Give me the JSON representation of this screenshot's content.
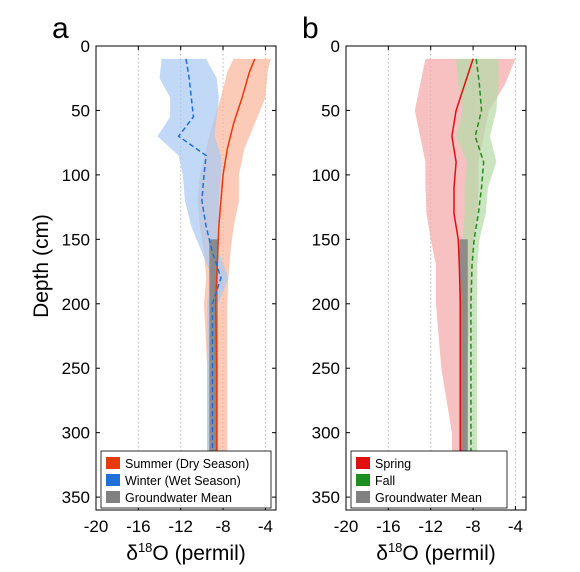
{
  "shared_ylabel": "Depth (cm)",
  "chart_data": [
    {
      "type": "line",
      "panel_label": "a",
      "xlabel_main": "δ",
      "xlabel_sup": "18",
      "xlabel_rest": "O (permil)",
      "xlim": [
        -20,
        -3
      ],
      "ylim": [
        0,
        360
      ],
      "y_reversed": true,
      "xticks": [
        -20,
        -16,
        -12,
        -8,
        -4
      ],
      "yticks": [
        0,
        50,
        100,
        150,
        200,
        250,
        300,
        350
      ],
      "grid": "vertical dotted",
      "legend_placement": "bottom",
      "series": [
        {
          "name": "Summer (Dry Season)",
          "color": "#e8380d",
          "fill": "#f9b79c",
          "dash": "solid",
          "depth": [
            10,
            20,
            40,
            60,
            80,
            100,
            120,
            140,
            160,
            180,
            200,
            250,
            300,
            315
          ],
          "mean": [
            -5.0,
            -5.5,
            -6.2,
            -7.0,
            -7.6,
            -8.0,
            -8.2,
            -8.4,
            -8.5,
            -8.6,
            -8.7,
            -8.6,
            -8.6,
            -8.6
          ],
          "low": [
            -7.0,
            -7.6,
            -8.2,
            -9.0,
            -9.6,
            -10.2,
            -10.4,
            -10.2,
            -9.8,
            -9.6,
            -9.8,
            -9.5,
            -9.5,
            -9.5
          ],
          "high": [
            -3.5,
            -3.8,
            -4.0,
            -5.0,
            -6.0,
            -6.5,
            -6.5,
            -7.0,
            -7.3,
            -7.5,
            -7.6,
            -7.6,
            -7.6,
            -7.6
          ]
        },
        {
          "name": "Winter (Wet Season)",
          "color": "#1f6fd6",
          "fill": "#a9c9f2",
          "dash": "dashed",
          "depth": [
            10,
            25,
            40,
            55,
            70,
            85,
            100,
            120,
            140,
            160,
            180,
            200,
            250,
            300,
            315
          ],
          "mean": [
            -11.5,
            -11.2,
            -11.0,
            -10.8,
            -12.2,
            -9.6,
            -9.8,
            -10.0,
            -9.6,
            -9.0,
            -8.2,
            -9.0,
            -9.0,
            -9.0,
            -9.0
          ],
          "low": [
            -13.8,
            -14.0,
            -13.0,
            -13.0,
            -14.2,
            -12.2,
            -11.8,
            -11.6,
            -11.0,
            -10.0,
            -9.0,
            -9.5,
            -9.5,
            -9.5,
            -9.5
          ],
          "high": [
            -9.6,
            -8.6,
            -8.4,
            -8.6,
            -8.8,
            -8.2,
            -8.2,
            -8.4,
            -8.4,
            -8.4,
            -7.5,
            -8.5,
            -8.5,
            -8.5,
            -8.5
          ]
        },
        {
          "name": "Groundwater Mean",
          "color": "#808080",
          "type": "bar",
          "x_range": [
            -9.3,
            -8.5
          ],
          "depth_range": [
            150,
            315
          ]
        }
      ]
    },
    {
      "type": "line",
      "panel_label": "b",
      "xlabel_main": "δ",
      "xlabel_sup": "18",
      "xlabel_rest": "O (permil)",
      "xlim": [
        -20,
        -3
      ],
      "ylim": [
        0,
        360
      ],
      "y_reversed": true,
      "xticks": [
        -20,
        -16,
        -12,
        -8,
        -4
      ],
      "yticks": [
        0,
        50,
        100,
        150,
        200,
        250,
        300,
        350
      ],
      "grid": "vertical dotted",
      "legend_placement": "bottom",
      "series": [
        {
          "name": "Spring",
          "color": "#e01010",
          "fill": "#f4a9a9",
          "dash": "solid",
          "depth": [
            10,
            30,
            50,
            70,
            90,
            110,
            130,
            150,
            170,
            200,
            250,
            300,
            315
          ],
          "mean": [
            -8.0,
            -8.8,
            -9.6,
            -10.0,
            -9.6,
            -9.8,
            -9.8,
            -9.4,
            -9.3,
            -9.2,
            -9.2,
            -9.2,
            -9.2
          ],
          "low": [
            -12.5,
            -13.0,
            -13.5,
            -13.0,
            -12.5,
            -12.5,
            -12.4,
            -12.0,
            -11.5,
            -11.5,
            -11.0,
            -10.0,
            -10.0
          ],
          "high": [
            -4.0,
            -5.0,
            -6.5,
            -7.0,
            -7.5,
            -7.5,
            -7.6,
            -8.0,
            -8.2,
            -8.2,
            -8.6,
            -8.8,
            -8.8
          ]
        },
        {
          "name": "Fall",
          "color": "#1e8f1e",
          "fill": "#b5dba8",
          "dash": "dashed",
          "depth": [
            10,
            30,
            50,
            70,
            90,
            110,
            130,
            150,
            170,
            200,
            250,
            300,
            315
          ],
          "mean": [
            -7.7,
            -7.4,
            -7.2,
            -7.8,
            -7.0,
            -7.2,
            -7.5,
            -7.9,
            -8.1,
            -8.2,
            -8.2,
            -8.2,
            -8.2
          ],
          "low": [
            -9.6,
            -9.4,
            -9.0,
            -9.6,
            -8.6,
            -8.8,
            -8.8,
            -9.0,
            -9.0,
            -9.0,
            -8.8,
            -8.8,
            -8.8
          ],
          "high": [
            -5.6,
            -5.6,
            -5.8,
            -6.4,
            -5.8,
            -6.6,
            -6.8,
            -7.4,
            -7.6,
            -7.6,
            -7.6,
            -7.6,
            -7.6
          ]
        },
        {
          "name": "Groundwater Mean",
          "color": "#808080",
          "type": "bar",
          "x_range": [
            -9.3,
            -8.5
          ],
          "depth_range": [
            150,
            315
          ]
        }
      ]
    }
  ]
}
